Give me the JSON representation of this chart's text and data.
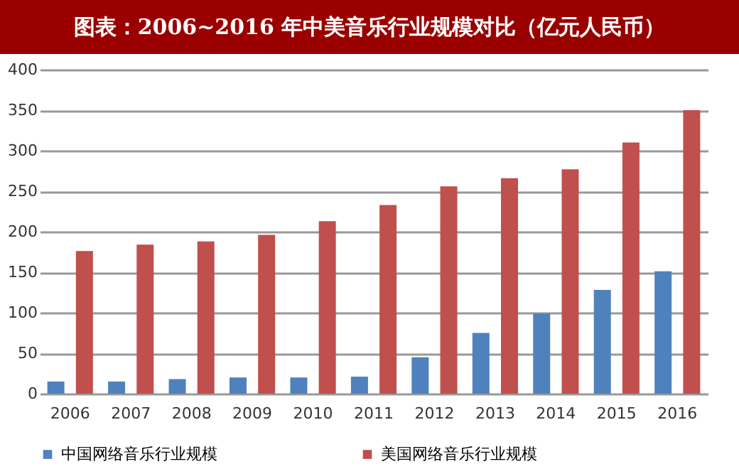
{
  "chart_data": {
    "type": "bar",
    "title": "图表：2006~2016 年中美音乐行业规模对比（亿元人民币）",
    "categories": [
      "2006",
      "2007",
      "2008",
      "2009",
      "2010",
      "2011",
      "2012",
      "2013",
      "2014",
      "2015",
      "2016"
    ],
    "series": [
      {
        "name": "中国网络音乐行业规模",
        "color": "#4f81bd",
        "values": [
          15,
          15,
          18,
          20,
          20,
          21,
          45,
          75,
          99,
          128,
          151
        ]
      },
      {
        "name": "美国网络音乐行业规模",
        "color": "#c0504d",
        "values": [
          176,
          184,
          188,
          196,
          213,
          233,
          256,
          266,
          277,
          310,
          350
        ]
      }
    ],
    "ylim": [
      0,
      400
    ],
    "yticks": [
      0,
      50,
      100,
      150,
      200,
      250,
      300,
      350,
      400
    ],
    "grid": "y",
    "legend": "bottom"
  }
}
